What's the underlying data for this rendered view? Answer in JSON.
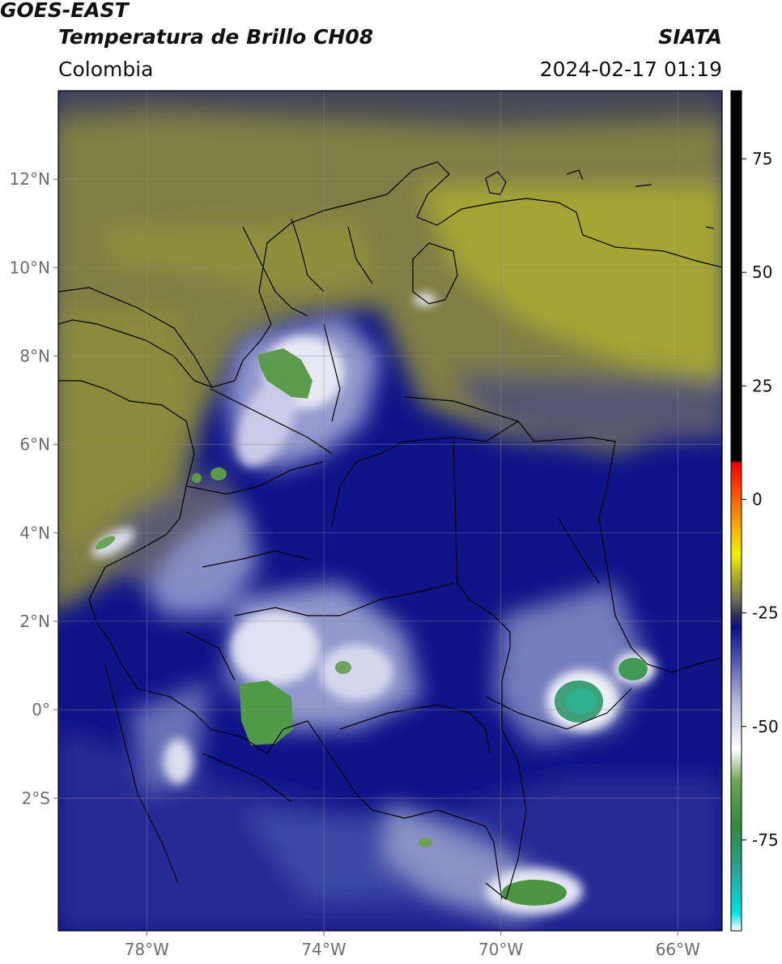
{
  "header": {
    "satellite": "GOES-EAST",
    "product": "Temperatura de Brillo CH08",
    "agency": "SIATA",
    "region": "Colombia",
    "datetime": "2024-02-17 01:19"
  },
  "map": {
    "lon_range": [
      -80,
      -65
    ],
    "lat_range": [
      -5,
      14
    ],
    "lat_ticks": [
      {
        "value": 12,
        "label": "12°N"
      },
      {
        "value": 10,
        "label": "10°N"
      },
      {
        "value": 8,
        "label": "8°N"
      },
      {
        "value": 6,
        "label": "6°N"
      },
      {
        "value": 4,
        "label": "4°N"
      },
      {
        "value": 2,
        "label": "2°N"
      },
      {
        "value": 0,
        "label": "0°"
      },
      {
        "value": -2,
        "label": "2°S"
      }
    ],
    "lon_ticks": [
      {
        "value": -78,
        "label": "78°W"
      },
      {
        "value": -74,
        "label": "74°W"
      },
      {
        "value": -70,
        "label": "70°W"
      },
      {
        "value": -66,
        "label": "66°W"
      }
    ],
    "grid": true
  },
  "colorbar": {
    "range": [
      -95,
      90
    ],
    "ticks": [
      {
        "value": 75,
        "label": "75"
      },
      {
        "value": 50,
        "label": "50"
      },
      {
        "value": 25,
        "label": "25"
      },
      {
        "value": 0,
        "label": "0"
      },
      {
        "value": -25,
        "label": "-25"
      },
      {
        "value": -50,
        "label": "-50"
      },
      {
        "value": -75,
        "label": "-75"
      }
    ],
    "stops": [
      {
        "value": -95,
        "color": "#ffffff"
      },
      {
        "value": -91,
        "color": "#00e0e0"
      },
      {
        "value": -82,
        "color": "#2aa59a"
      },
      {
        "value": -72,
        "color": "#2f8a3c"
      },
      {
        "value": -62,
        "color": "#6fa556"
      },
      {
        "value": -55,
        "color": "#ffffff"
      },
      {
        "value": -45,
        "color": "#b8bcdc"
      },
      {
        "value": -35,
        "color": "#4b54ad"
      },
      {
        "value": -28,
        "color": "#0a0f80"
      },
      {
        "value": -25,
        "color": "#3a3a52"
      },
      {
        "value": -22,
        "color": "#6c6c5a"
      },
      {
        "value": -18,
        "color": "#a0a030"
      },
      {
        "value": -12,
        "color": "#f2f200"
      },
      {
        "value": -5,
        "color": "#f8a000"
      },
      {
        "value": 3,
        "color": "#f84000"
      },
      {
        "value": 8,
        "color": "#f00000"
      },
      {
        "value": 8.5,
        "color": "#000000"
      },
      {
        "value": 90,
        "color": "#000000"
      }
    ]
  }
}
